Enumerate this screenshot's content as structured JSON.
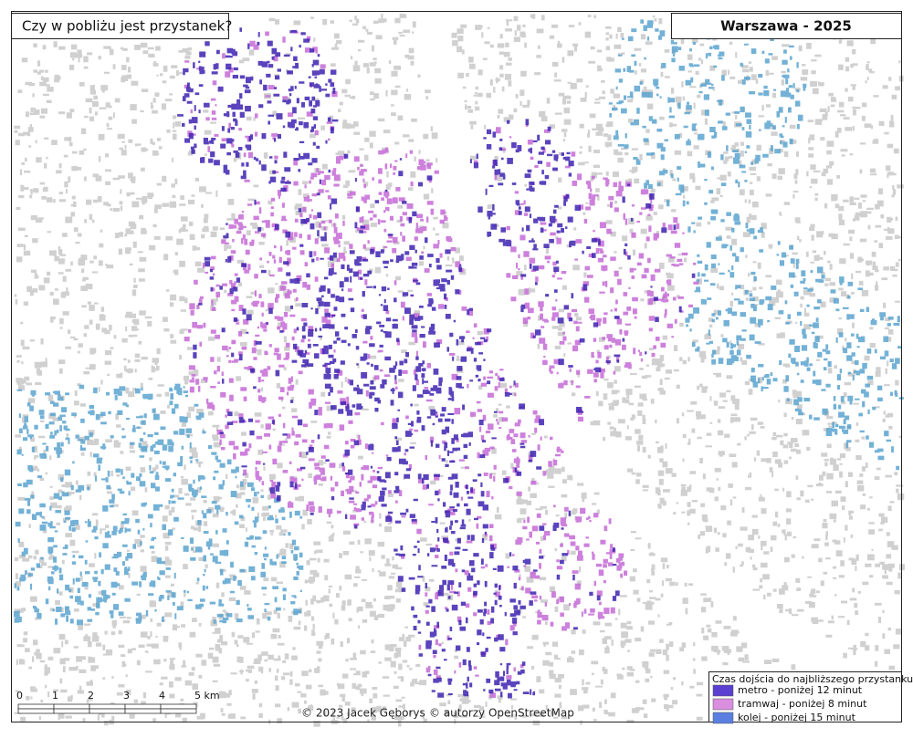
{
  "header": {
    "title": "Czy w pobliżu jest przystanek?",
    "city_year": "Warszawa - 2025"
  },
  "legend": {
    "title": "Czas dojścia do najbliższego przystanku",
    "items": [
      {
        "label": "metro - poniżej 12 minut",
        "color": "#5a3fd0"
      },
      {
        "label": "tramwaj - poniżej 8 minut",
        "color": "#d98ee0"
      },
      {
        "label": "kolej - poniżej 15 minut",
        "color": "#5b7fe0"
      }
    ]
  },
  "scale_bar": {
    "labels": [
      "0",
      "1",
      "2",
      "3",
      "4",
      "5 km"
    ]
  },
  "credits": [
    "© 2023 Jacek Gęborys",
    "© autorzy OpenStreetMap"
  ]
}
